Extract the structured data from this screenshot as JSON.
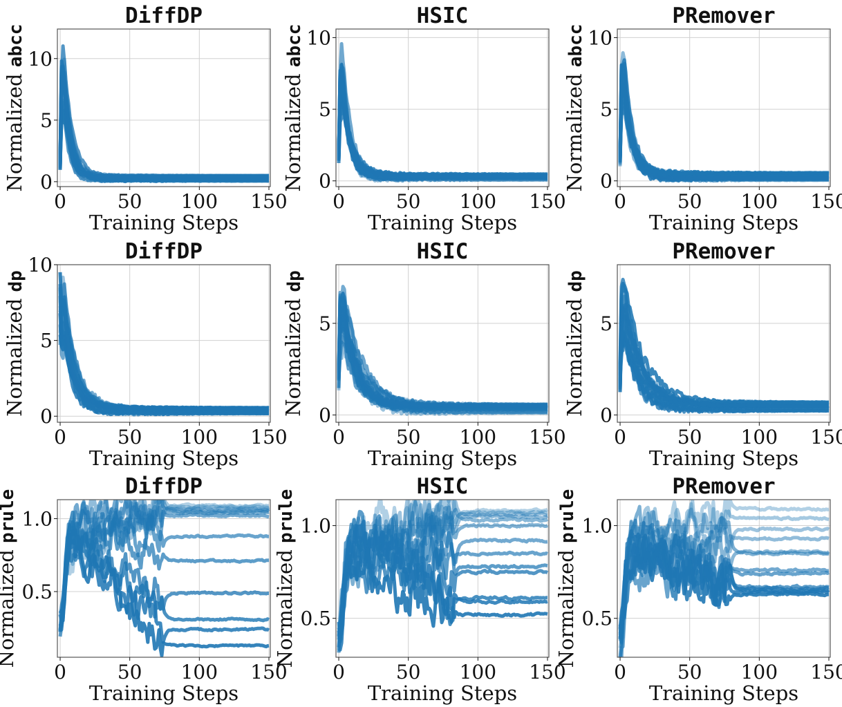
{
  "colors": {
    "series": "#1f77b4",
    "grid": "#d0d0d0",
    "axis": "#555555"
  },
  "chart_data": [
    {
      "type": "line",
      "title": "DiffDP",
      "ylabel_prefix": "Normalized",
      "ylabel_metric": "abcc",
      "xlabel": "Training Steps",
      "xlim": [
        -2,
        151
      ],
      "ylim": [
        -0.4,
        12.4
      ],
      "xticks": [
        0,
        50,
        100,
        150
      ],
      "yticks": [
        0,
        5,
        10
      ],
      "ytick_labels": [
        "0",
        "5",
        "10"
      ],
      "pattern": "decay",
      "params": {
        "peak": 11.6,
        "tail_lo": 0.05,
        "tail_hi": 0.6,
        "tau": 5,
        "noise": 0.2,
        "start": 1.5
      }
    },
    {
      "type": "line",
      "title": "HSIC",
      "ylabel_prefix": "Normalized",
      "ylabel_metric": "abcc",
      "xlabel": "Training Steps",
      "xlim": [
        -2,
        151
      ],
      "ylim": [
        -0.4,
        10.6
      ],
      "xticks": [
        0,
        50,
        100,
        150
      ],
      "yticks": [
        0,
        5,
        10
      ],
      "ytick_labels": [
        "0",
        "5",
        "10"
      ],
      "pattern": "decay",
      "params": {
        "peak": 10.0,
        "tail_lo": 0.05,
        "tail_hi": 0.5,
        "tau": 6,
        "noise": 0.35,
        "start": 1.8
      }
    },
    {
      "type": "line",
      "title": "PRemover",
      "ylabel_prefix": "Normalized",
      "ylabel_metric": "abcc",
      "xlabel": "Training Steps",
      "xlim": [
        -2,
        151
      ],
      "ylim": [
        -0.4,
        10.6
      ],
      "xticks": [
        0,
        50,
        100,
        150
      ],
      "yticks": [
        0,
        5,
        10
      ],
      "ytick_labels": [
        "0",
        "5",
        "10"
      ],
      "pattern": "decay",
      "params": {
        "peak": 10.0,
        "tail_lo": 0.05,
        "tail_hi": 0.6,
        "tau": 6,
        "noise": 0.35,
        "start": 1.5
      }
    },
    {
      "type": "line",
      "title": "DiffDP",
      "ylabel_prefix": "Normalized",
      "ylabel_metric": "dp",
      "xlabel": "Training Steps",
      "xlim": [
        -2,
        151
      ],
      "ylim": [
        -0.4,
        10.0
      ],
      "xticks": [
        0,
        50,
        100,
        150
      ],
      "yticks": [
        0,
        5,
        10
      ],
      "ytick_labels": [
        "0",
        "5",
        "10"
      ],
      "pattern": "decay",
      "params": {
        "peak": 9.5,
        "tail_lo": 0.1,
        "tail_hi": 0.6,
        "tau": 8,
        "noise": 0.35,
        "start": 7.5
      }
    },
    {
      "type": "line",
      "title": "HSIC",
      "ylabel_prefix": "Normalized",
      "ylabel_metric": "dp",
      "xlabel": "Training Steps",
      "xlim": [
        -2,
        151
      ],
      "ylim": [
        -0.4,
        8.2
      ],
      "xticks": [
        0,
        50,
        100,
        150
      ],
      "yticks": [
        0,
        5
      ],
      "ytick_labels": [
        "0",
        "5"
      ],
      "pattern": "decay",
      "params": {
        "peak": 7.6,
        "tail_lo": 0.1,
        "tail_hi": 0.6,
        "tau": 12,
        "noise": 0.45,
        "start": 2.0
      }
    },
    {
      "type": "line",
      "title": "PRemover",
      "ylabel_prefix": "Normalized",
      "ylabel_metric": "dp",
      "xlabel": "Training Steps",
      "xlim": [
        -2,
        151
      ],
      "ylim": [
        -0.4,
        8.2
      ],
      "xticks": [
        0,
        50,
        100,
        150
      ],
      "yticks": [
        0,
        5
      ],
      "ytick_labels": [
        "0",
        "5"
      ],
      "pattern": "decay",
      "params": {
        "peak": 7.6,
        "tail_lo": 0.2,
        "tail_hi": 0.7,
        "tau": 12,
        "noise": 0.45,
        "start": 2.0
      }
    },
    {
      "type": "line",
      "title": "DiffDP",
      "ylabel_prefix": "Normalized",
      "ylabel_metric": "prule",
      "xlabel": "Training Steps",
      "xlim": [
        -2,
        151
      ],
      "ylim": [
        0.05,
        1.13
      ],
      "xticks": [
        0,
        50,
        100,
        150
      ],
      "yticks": [
        0.5,
        1.0
      ],
      "ytick_labels": [
        "0.5",
        "1.0"
      ],
      "pattern": "converge",
      "params": {
        "start": 0.27,
        "finals": [
          1.09,
          1.08,
          1.07,
          1.06,
          1.05,
          1.04,
          1.02,
          0.88,
          0.71,
          0.49,
          0.31,
          0.24,
          0.13
        ],
        "noise": 0.1,
        "settle": 75
      }
    },
    {
      "type": "line",
      "title": "HSIC",
      "ylabel_prefix": "Normalized",
      "ylabel_metric": "prule",
      "xlabel": "Training Steps",
      "xlim": [
        -2,
        151
      ],
      "ylim": [
        0.29,
        1.14
      ],
      "xticks": [
        0,
        50,
        100,
        150
      ],
      "yticks": [
        0.5,
        1.0
      ],
      "ytick_labels": [
        "0.5",
        "1.0"
      ],
      "pattern": "converge",
      "params": {
        "start": 0.4,
        "finals": [
          1.08,
          1.07,
          1.06,
          1.05,
          1.03,
          1.0,
          0.92,
          0.85,
          0.78,
          0.75,
          0.61,
          0.59,
          0.52
        ],
        "noise": 0.1,
        "settle": 85
      }
    },
    {
      "type": "line",
      "title": "PRemover",
      "ylabel_prefix": "Normalized",
      "ylabel_metric": "prule",
      "xlabel": "Training Steps",
      "xlim": [
        -2,
        151
      ],
      "ylim": [
        0.29,
        1.14
      ],
      "xticks": [
        0,
        50,
        100,
        150
      ],
      "yticks": [
        0.5,
        1.0
      ],
      "ytick_labels": [
        "0.5",
        "1.0"
      ],
      "pattern": "converge",
      "params": {
        "start": 0.35,
        "finals": [
          1.09,
          1.04,
          0.98,
          0.93,
          0.86,
          0.85,
          0.76,
          0.74,
          0.67,
          0.66,
          0.65,
          0.64,
          0.63
        ],
        "noise": 0.09,
        "settle": 80
      }
    }
  ]
}
